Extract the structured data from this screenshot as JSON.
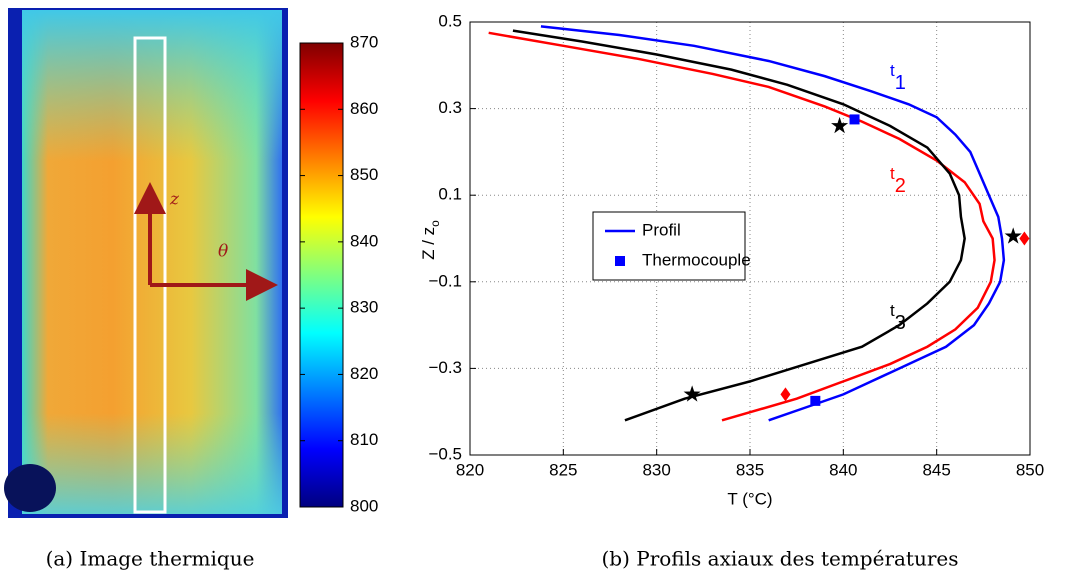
{
  "chart_data": [
    {
      "type": "image",
      "clim": [
        800,
        870
      ],
      "cticks": [
        800,
        810,
        820,
        830,
        840,
        850,
        860,
        870
      ],
      "annotations": [
        "z",
        "θ"
      ],
      "caption": "(a) Image thermique"
    },
    {
      "type": "line",
      "xlabel": "T (°C)",
      "ylabel": "Z / z",
      "ylabel_sub": "o",
      "xlim": [
        820,
        850
      ],
      "xticks": [
        820,
        825,
        830,
        835,
        840,
        845,
        850
      ],
      "ylim": [
        -0.5,
        0.5
      ],
      "yticks": [
        {
          "value": -0.5,
          "label": "−0.5"
        },
        {
          "value": -0.3,
          "label": "−0.3"
        },
        {
          "value": -0.1,
          "label": "−0.1"
        },
        0.1,
        0.3,
        0.5
      ],
      "grid": true,
      "series": [
        {
          "color": "#0000ff",
          "x": [
            823.8,
            828,
            832,
            836,
            839,
            841.5,
            843.5,
            845,
            846,
            846.8,
            847.3,
            847.8,
            848.3,
            848.5,
            848.6,
            848.4,
            847.8,
            847,
            845.5,
            844,
            842,
            840,
            838,
            836
          ],
          "y": [
            0.49,
            0.47,
            0.445,
            0.41,
            0.375,
            0.34,
            0.31,
            0.28,
            0.24,
            0.2,
            0.15,
            0.1,
            0.05,
            0.0,
            -0.05,
            -0.1,
            -0.15,
            -0.2,
            -0.25,
            -0.28,
            -0.32,
            -0.36,
            -0.39,
            -0.42
          ]
        },
        {
          "color": "#ff0000",
          "x": [
            821,
            825,
            829,
            833,
            836,
            839,
            841,
            843,
            845,
            846.5,
            847.3,
            847.5,
            848,
            848.1,
            847.9,
            847.2,
            846,
            844.5,
            842.5,
            840,
            837.5,
            833.5
          ],
          "y": [
            0.475,
            0.445,
            0.415,
            0.38,
            0.35,
            0.305,
            0.27,
            0.23,
            0.18,
            0.13,
            0.08,
            0.04,
            0.0,
            -0.05,
            -0.1,
            -0.16,
            -0.21,
            -0.25,
            -0.29,
            -0.33,
            -0.37,
            -0.42
          ]
        },
        {
          "color": "#000000",
          "x": [
            822.3,
            826,
            830,
            834,
            837,
            840,
            842.5,
            844.5,
            845.7,
            846.2,
            846.3,
            846.5,
            846.3,
            845.7,
            844.5,
            843,
            841,
            838,
            835,
            831.5,
            828.3
          ],
          "y": [
            0.48,
            0.455,
            0.425,
            0.39,
            0.355,
            0.31,
            0.26,
            0.21,
            0.15,
            0.1,
            0.05,
            0.0,
            -0.05,
            -0.1,
            -0.15,
            -0.2,
            -0.25,
            -0.29,
            -0.33,
            -0.37,
            -0.42
          ]
        }
      ],
      "markers": [
        {
          "shape": "square",
          "color": "#0000ff",
          "x": [
            840.6,
            838.5
          ],
          "y": [
            0.275,
            -0.375
          ]
        },
        {
          "shape": "diamond",
          "color": "#ff0000",
          "x": [
            836.9,
            849.7
          ],
          "y": [
            -0.36,
            0.0
          ]
        },
        {
          "shape": "star",
          "color": "#000000",
          "x": [
            839.8,
            831.9,
            849.1
          ],
          "y": [
            0.26,
            -0.36,
            0.005
          ]
        }
      ],
      "labels": [
        {
          "text": "t",
          "sub": "1",
          "color": "#0000ff"
        },
        {
          "text": "t",
          "sub": "2",
          "color": "#ff0000"
        },
        {
          "text": "t",
          "sub": "3",
          "color": "#000000"
        }
      ],
      "legend": [
        {
          "label": "Profil",
          "kind": "line",
          "color": "#0000ff"
        },
        {
          "label": "Thermocouple",
          "kind": "square",
          "color": "#0000ff"
        }
      ],
      "caption": "(b) Profils axiaux des températures"
    }
  ]
}
